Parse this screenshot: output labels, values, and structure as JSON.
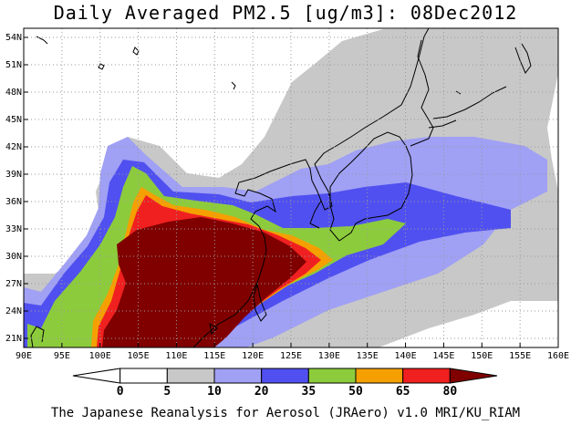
{
  "title": "Daily Averaged PM2.5 [ug/m3]: 08Dec2012",
  "footer": "The Japanese Reanalysis for Aerosol (JRAero) v1.0 MRI/KU_RIAM",
  "map": {
    "lon_range": [
      90,
      160
    ],
    "lat_range": [
      20,
      55
    ],
    "lat_labels": [
      "21N",
      "24N",
      "27N",
      "30N",
      "33N",
      "36N",
      "39N",
      "42N",
      "45N",
      "48N",
      "51N",
      "54N"
    ],
    "lon_labels": [
      "90E",
      "95E",
      "100E",
      "105E",
      "110E",
      "115E",
      "120E",
      "125E",
      "130E",
      "135E",
      "140E",
      "145E",
      "150E",
      "155E",
      "160E"
    ]
  },
  "legend": {
    "labels": [
      "0",
      "5",
      "10",
      "20",
      "35",
      "50",
      "65",
      "80"
    ],
    "colors": [
      "#ffffff",
      "#ffffff",
      "#c8c8c8",
      "#a0a0f5",
      "#5050f0",
      "#8ccc3c",
      "#f5a000",
      "#f02020",
      "#800000"
    ]
  }
}
